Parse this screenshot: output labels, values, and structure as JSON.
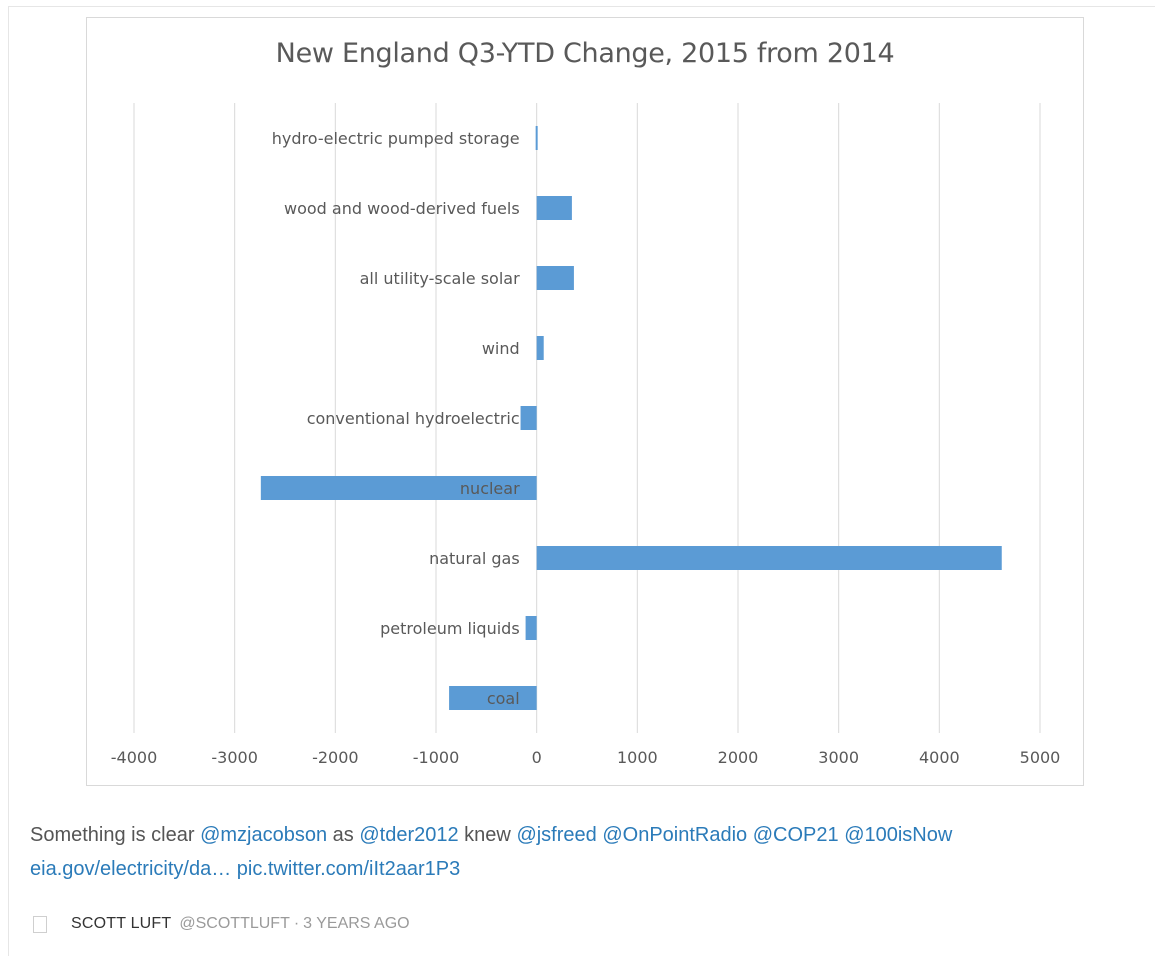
{
  "tweet": {
    "parts": [
      {
        "text": "Something is clear ",
        "link": false
      },
      {
        "text": "@mzjacobson",
        "link": true
      },
      {
        "text": " as ",
        "link": false
      },
      {
        "text": "@tder2012",
        "link": true
      },
      {
        "text": " knew ",
        "link": false
      },
      {
        "text": "@jsfreed",
        "link": true
      },
      {
        "text": " ",
        "link": false
      },
      {
        "text": "@OnPointRadio",
        "link": true
      },
      {
        "text": " ",
        "link": false
      },
      {
        "text": "@COP21",
        "link": true
      },
      {
        "text": " ",
        "link": false
      },
      {
        "text": "@100isNow",
        "link": true
      },
      {
        "text": " ",
        "link": false
      },
      {
        "text": "eia.gov/electricity/da…",
        "link": true
      },
      {
        "text": " ",
        "link": false
      },
      {
        "text": "pic.twitter.com/iIt2aar1P3",
        "link": true
      }
    ],
    "link_color": "#2b7bb9"
  },
  "footer": {
    "author_name": "SCOTT LUFT",
    "handle": "@SCOTTLUFT",
    "separator": "·",
    "time": "3 YEARS AGO"
  },
  "chart_data": {
    "type": "bar",
    "orientation": "horizontal",
    "title": "New England Q3-YTD Change, 2015 from 2014",
    "categories": [
      "hydro-electric pumped storage",
      "wood and wood-derived fuels",
      "all utility-scale solar",
      "wind",
      "conventional hydroelectric",
      "nuclear",
      "natural gas",
      "petroleum liquids",
      "coal"
    ],
    "values": [
      -10,
      350,
      370,
      70,
      -160,
      -2740,
      4620,
      -110,
      -870
    ],
    "xlim": [
      -4000,
      5000
    ],
    "xticks": [
      "-4000",
      "-3000",
      "-2000",
      "-1000",
      "0",
      "1000",
      "2000",
      "3000",
      "4000",
      "5000"
    ],
    "grid": true,
    "legend": false,
    "bar_color": "#5b9bd5",
    "grid_color": "#d9d9d9",
    "label_color": "#595959"
  }
}
